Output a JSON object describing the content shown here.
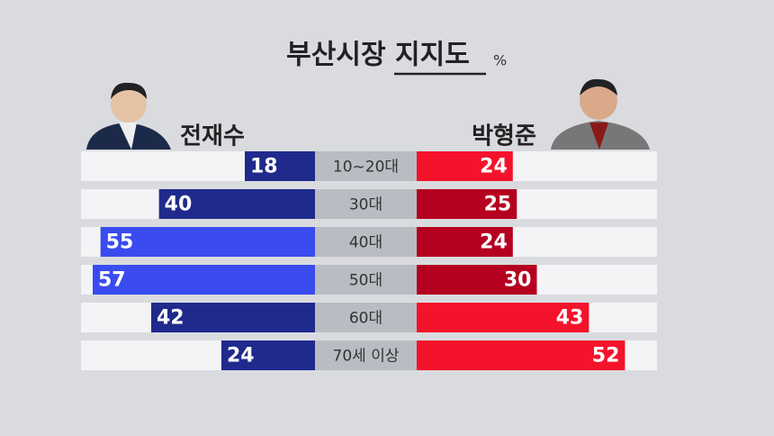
{
  "chart_data": {
    "type": "butterfly",
    "title": "부산시장 지지도",
    "unit": "%",
    "categories": [
      "10~20대",
      "30대",
      "40대",
      "50대",
      "60대",
      "70세 이상"
    ],
    "xlim": [
      0,
      60
    ],
    "series": [
      {
        "name": "전재수",
        "side": "left",
        "values": [
          18,
          40,
          55,
          57,
          42,
          24
        ],
        "colors": [
          "#1f2a8c",
          "#1f2a8c",
          "#3a4cf0",
          "#3a4cf0",
          "#1f2a8c",
          "#1f2a8c"
        ]
      },
      {
        "name": "박형준",
        "side": "right",
        "values": [
          24,
          25,
          24,
          30,
          43,
          52
        ],
        "colors": [
          "#f5132b",
          "#b5001f",
          "#b5001f",
          "#b5001f",
          "#f5132b",
          "#f5132b"
        ]
      }
    ]
  }
}
